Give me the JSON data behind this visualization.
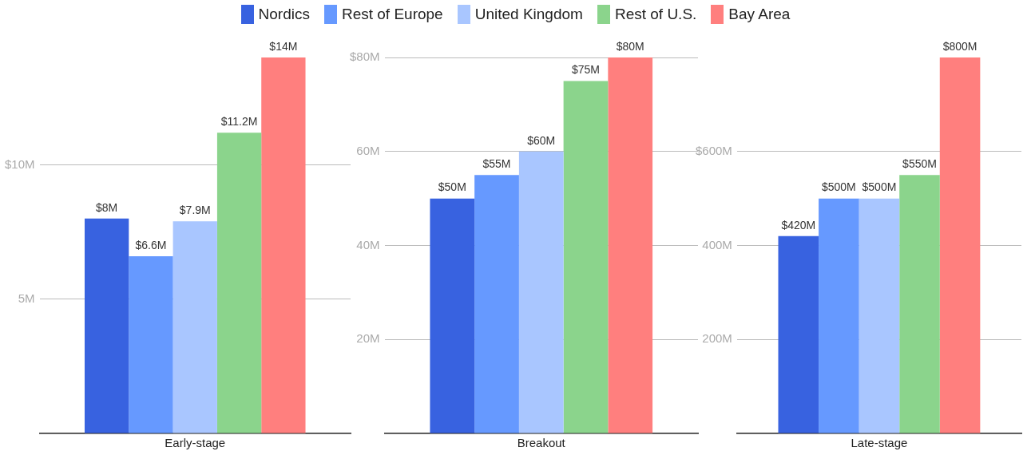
{
  "chart_data": [
    {
      "type": "bar",
      "categories": [
        "Early-stage"
      ],
      "legend": "top",
      "data_labels": false,
      "grid": "y",
      "series": [
        {
          "name": "Nordics",
          "color": "#3862e0",
          "values": [
            8
          ],
          "value_labels": [
            "$8M"
          ]
        },
        {
          "name": "Rest of Europe",
          "color": "#6699ff",
          "values": [
            6.6
          ],
          "value_labels": [
            "$6.6M"
          ]
        },
        {
          "name": "United Kingdom",
          "color": "#a9c6ff",
          "values": [
            7.9
          ],
          "value_labels": [
            "$7.9M"
          ]
        },
        {
          "name": "Rest of U.S.",
          "color": "#8bd48c",
          "values": [
            11.2
          ],
          "value_labels": [
            "$11.2M"
          ]
        },
        {
          "name": "Bay Area",
          "color": "#ff7f7e",
          "values": [
            14
          ],
          "value_labels": [
            "$14M"
          ]
        }
      ],
      "ylim": [
        0,
        14
      ],
      "yticks": [
        {
          "value": 0,
          "label": null
        },
        {
          "value": 5,
          "label": "5M"
        },
        {
          "value": 10,
          "label": "$10M"
        }
      ]
    },
    {
      "type": "bar",
      "categories": [
        "Breakout"
      ],
      "grid": "y",
      "series": [
        {
          "color": "#3862e0",
          "values": [
            50
          ],
          "value_labels": [
            "$50M"
          ]
        },
        {
          "color": "#6699ff",
          "values": [
            55
          ],
          "value_labels": [
            "$55M"
          ]
        },
        {
          "color": "#a9c6ff",
          "values": [
            60
          ],
          "value_labels": [
            "$60M"
          ]
        },
        {
          "color": "#8bd48c",
          "values": [
            75
          ],
          "value_labels": [
            "$75M"
          ]
        },
        {
          "color": "#ff7f7e",
          "values": [
            80
          ],
          "value_labels": [
            "$80M"
          ]
        }
      ],
      "ylim": [
        0,
        80
      ],
      "yticks": [
        {
          "value": 0,
          "label": null
        },
        {
          "value": 20,
          "label": "20M"
        },
        {
          "value": 40,
          "label": "40M"
        },
        {
          "value": 60,
          "label": "60M"
        },
        {
          "value": 80,
          "label": "$80M"
        }
      ]
    },
    {
      "type": "bar",
      "categories": [
        "Late-stage"
      ],
      "grid": "y",
      "series": [
        {
          "color": "#3862e0",
          "values": [
            420
          ],
          "value_labels": [
            "$420M"
          ]
        },
        {
          "color": "#6699ff",
          "values": [
            500
          ],
          "value_labels": [
            "$500M"
          ]
        },
        {
          "color": "#a9c6ff",
          "values": [
            500
          ],
          "value_labels": [
            "$500M"
          ]
        },
        {
          "color": "#8bd48c",
          "values": [
            550
          ],
          "value_labels": [
            "$550M"
          ]
        },
        {
          "color": "#ff7f7e",
          "values": [
            800
          ],
          "value_labels": [
            "$800M"
          ]
        }
      ],
      "ylim": [
        0,
        800
      ],
      "yticks": [
        {
          "value": 0,
          "label": null
        },
        {
          "value": 200,
          "label": "200M"
        },
        {
          "value": 400,
          "label": "400M"
        },
        {
          "value": 600,
          "label": "$600M"
        }
      ]
    }
  ]
}
